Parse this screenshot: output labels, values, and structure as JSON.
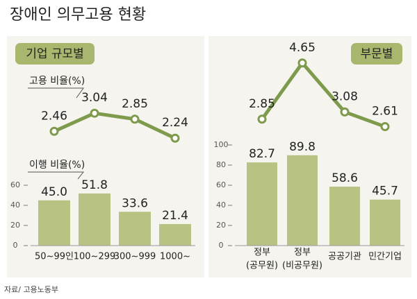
{
  "title": "장애인 의무고용 현황",
  "source": "자료/ 고용노동부",
  "chart_data": [
    {
      "type": "combo",
      "title": "기업 규모별",
      "categories": [
        [
          "50~99인"
        ],
        [
          "100~299"
        ],
        [
          "300~999"
        ],
        [
          "1000~"
        ]
      ],
      "series": [
        {
          "name": "고용 비율(%)",
          "kind": "line",
          "color": "#7e9a4c",
          "values": [
            2.46,
            3.04,
            2.85,
            2.24
          ]
        },
        {
          "name": "이행 비율(%)",
          "kind": "bar",
          "color": "#b8c383",
          "values": [
            45,
            51.8,
            33.6,
            21.4
          ],
          "value_labels": [
            "45.0",
            "51.8",
            "33.6",
            "21.4"
          ]
        }
      ],
      "ylim": [
        0,
        60
      ],
      "yticks": [
        0,
        20,
        40,
        60
      ]
    },
    {
      "type": "combo",
      "title": "부문별",
      "categories": [
        [
          "정부",
          "(공무원)"
        ],
        [
          "정부",
          "(비공무원)"
        ],
        [
          "공공기관"
        ],
        [
          "민간기업"
        ]
      ],
      "series": [
        {
          "kind": "line",
          "color": "#7e9a4c",
          "values": [
            2.85,
            4.65,
            3.08,
            2.61
          ]
        },
        {
          "kind": "bar",
          "color": "#b8c383",
          "values": [
            82.7,
            89.8,
            58.6,
            45.7
          ]
        }
      ],
      "ylim": [
        0,
        100
      ],
      "yticks": [
        0,
        20,
        40,
        60,
        80,
        100
      ]
    }
  ]
}
